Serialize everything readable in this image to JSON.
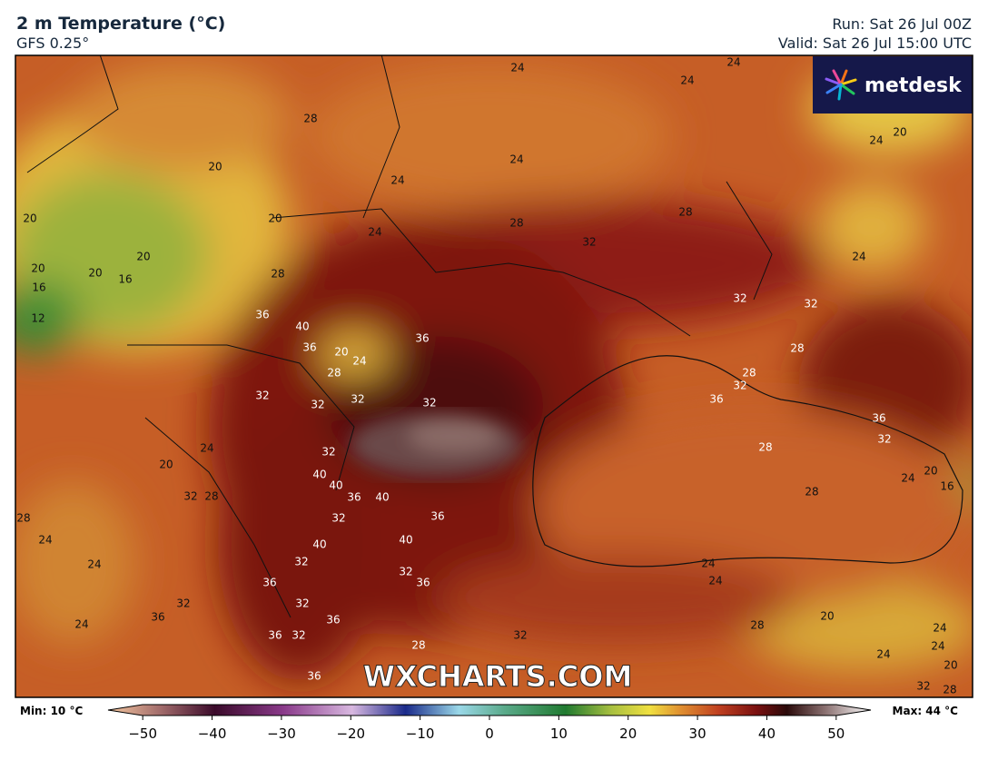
{
  "header": {
    "title": "2 m Temperature (°C)",
    "model": "GFS 0.25°",
    "run": "Run: Sat 26 Jul 00Z",
    "valid": "Valid: Sat 26 Jul 15:00 UTC"
  },
  "logo": "metdesk",
  "watermark": "WXCHARTS.COM",
  "contour_labels": [
    24,
    24,
    24,
    28,
    20,
    24,
    24,
    24,
    20,
    20,
    20,
    24,
    28,
    28,
    32,
    20,
    20,
    20,
    16,
    16,
    28,
    24,
    36,
    40,
    12,
    32,
    32,
    36,
    20,
    24,
    36,
    28,
    32,
    32,
    32,
    32,
    28,
    28,
    36,
    32,
    36,
    32,
    24,
    28,
    32,
    20,
    40,
    40,
    36,
    40,
    32,
    28,
    24,
    20,
    16,
    28,
    28,
    32,
    36,
    24,
    40,
    40,
    32,
    32,
    24,
    24,
    24,
    36,
    36,
    32,
    32,
    36,
    36,
    24,
    20,
    28,
    36,
    32,
    32,
    24,
    28,
    24,
    24,
    20,
    36,
    32,
    28
  ],
  "colorbar": {
    "min_label": "Min: 10 °C",
    "max_label": "Max: 44 °C",
    "lim": [
      -55,
      55
    ],
    "ticks": [
      {
        "value": -50,
        "label": "−50"
      },
      {
        "value": -40,
        "label": "−40"
      },
      {
        "value": -30,
        "label": "−30"
      },
      {
        "value": -20,
        "label": "−20"
      },
      {
        "value": -10,
        "label": "−10"
      },
      0,
      10,
      20,
      30,
      40,
      50
    ]
  }
}
